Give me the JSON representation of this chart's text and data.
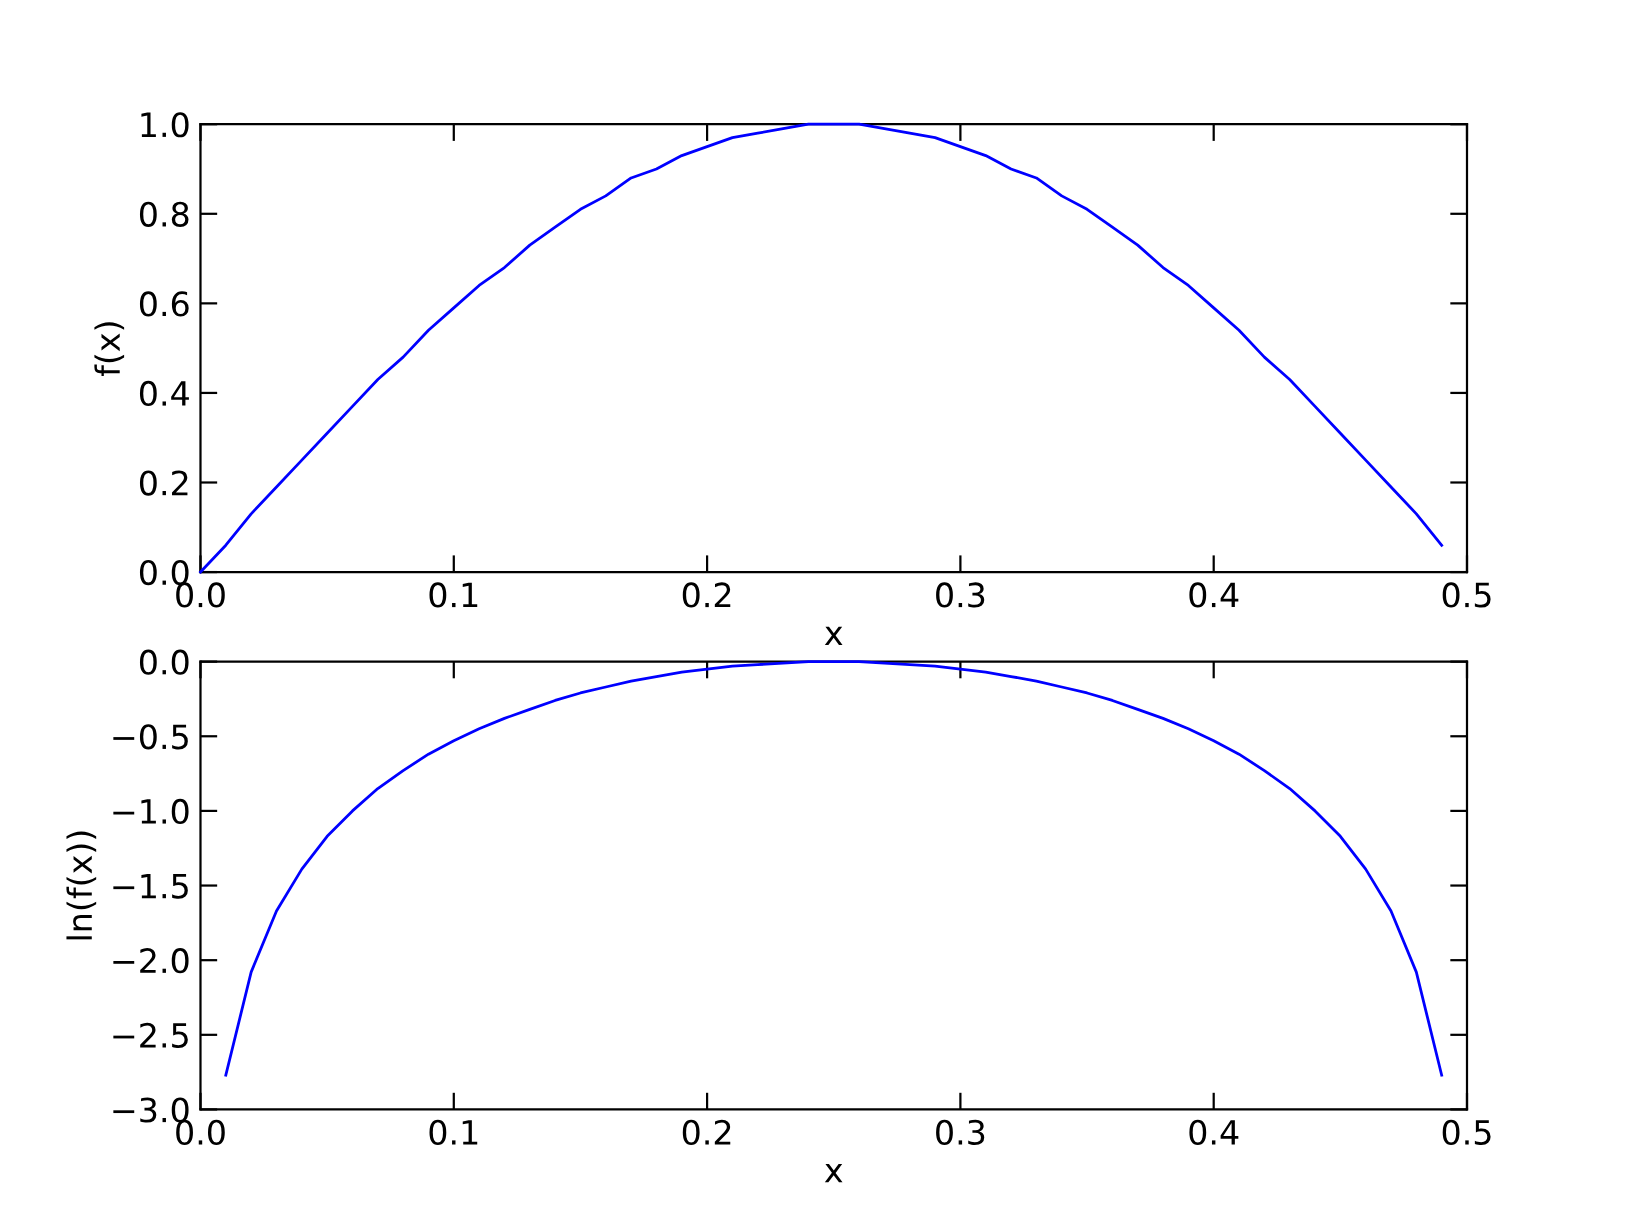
{
  "chart_data": [
    {
      "type": "line",
      "xlabel": "x",
      "ylabel": "f(x)",
      "xlim": [
        0,
        0.5
      ],
      "ylim": [
        0,
        1
      ],
      "xticks": [
        {
          "value": 0,
          "label": "0.0"
        },
        0.1,
        0.2,
        0.3,
        0.4,
        0.5
      ],
      "yticks": [
        {
          "value": 0,
          "label": "0.0"
        },
        0.2,
        0.4,
        0.6,
        0.8,
        {
          "value": 1,
          "label": "1.0"
        }
      ],
      "grid": false,
      "marker": "none",
      "line_style": "solid",
      "x": [
        0,
        0.01,
        0.02,
        0.03,
        0.04,
        0.05,
        0.06,
        0.07,
        0.08,
        0.09,
        0.1,
        0.11,
        0.12,
        0.13,
        0.14,
        0.15,
        0.16,
        0.17,
        0.18,
        0.19,
        0.2,
        0.21,
        0.22,
        0.23,
        0.24,
        0.25,
        0.26,
        0.27,
        0.28,
        0.29,
        0.3,
        0.31,
        0.32,
        0.33,
        0.34,
        0.35,
        0.36,
        0.37,
        0.38,
        0.39,
        0.4,
        0.41,
        0.42,
        0.43,
        0.44,
        0.45,
        0.46,
        0.47,
        0.48,
        0.49
      ],
      "series": [
        {
          "color": "#0000ff",
          "values": [
            0,
            0.06,
            0.13,
            0.19,
            0.25,
            0.31,
            0.37,
            0.43,
            0.48,
            0.54,
            0.59,
            0.64,
            0.68,
            0.73,
            0.77,
            0.81,
            0.84,
            0.88,
            0.9,
            0.93,
            0.95,
            0.97,
            0.98,
            0.99,
            1,
            1,
            1,
            0.99,
            0.98,
            0.97,
            0.95,
            0.93,
            0.9,
            0.88,
            0.84,
            0.81,
            0.77,
            0.73,
            0.68,
            0.64,
            0.59,
            0.54,
            0.48,
            0.43,
            0.37,
            0.31,
            0.25,
            0.19,
            0.13,
            0.06
          ]
        }
      ]
    },
    {
      "type": "line",
      "xlabel": "x",
      "ylabel": "ln(f(x))",
      "xlim": [
        0,
        0.5
      ],
      "ylim": [
        -3,
        0
      ],
      "xticks": [
        {
          "value": 0,
          "label": "0.0"
        },
        0.1,
        0.2,
        0.3,
        0.4,
        0.5
      ],
      "yticks": [
        {
          "value": -3,
          "label": "−3.0"
        },
        {
          "value": -2.5,
          "label": "−2.5"
        },
        {
          "value": -2,
          "label": "−2.0"
        },
        {
          "value": -1.5,
          "label": "−1.5"
        },
        {
          "value": -1,
          "label": "−1.0"
        },
        {
          "value": -0.5,
          "label": "−0.5"
        },
        {
          "value": 0,
          "label": "0.0"
        }
      ],
      "grid": false,
      "marker": "none",
      "line_style": "solid",
      "x": [
        0.01,
        0.02,
        0.03,
        0.04,
        0.05,
        0.06,
        0.07,
        0.08,
        0.09,
        0.1,
        0.11,
        0.12,
        0.13,
        0.14,
        0.15,
        0.16,
        0.17,
        0.18,
        0.19,
        0.2,
        0.21,
        0.22,
        0.23,
        0.24,
        0.25,
        0.26,
        0.27,
        0.28,
        0.29,
        0.3,
        0.31,
        0.32,
        0.33,
        0.34,
        0.35,
        0.36,
        0.37,
        0.38,
        0.39,
        0.4,
        0.41,
        0.42,
        0.43,
        0.44,
        0.45,
        0.46,
        0.47,
        0.48,
        0.49
      ],
      "series": [
        {
          "color": "#0000ff",
          "values": [
            -2.77,
            -2.08,
            -1.67,
            -1.39,
            -1.17,
            -1.0,
            -0.85,
            -0.73,
            -0.62,
            -0.53,
            -0.45,
            -0.38,
            -0.32,
            -0.26,
            -0.21,
            -0.17,
            -0.13,
            -0.1,
            -0.07,
            -0.05,
            -0.03,
            -0.02,
            -0.01,
            0,
            0,
            0,
            -0.01,
            -0.02,
            -0.03,
            -0.05,
            -0.07,
            -0.1,
            -0.13,
            -0.17,
            -0.21,
            -0.26,
            -0.32,
            -0.38,
            -0.45,
            -0.53,
            -0.62,
            -0.73,
            -0.85,
            -1.0,
            -1.17,
            -1.39,
            -1.67,
            -2.08,
            -2.77
          ]
        }
      ]
    }
  ]
}
